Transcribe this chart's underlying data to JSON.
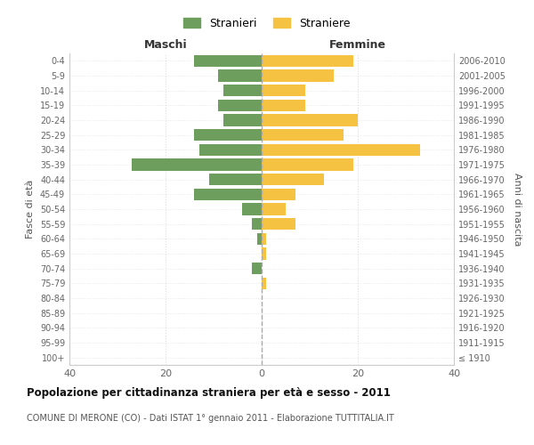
{
  "age_groups": [
    "100+",
    "95-99",
    "90-94",
    "85-89",
    "80-84",
    "75-79",
    "70-74",
    "65-69",
    "60-64",
    "55-59",
    "50-54",
    "45-49",
    "40-44",
    "35-39",
    "30-34",
    "25-29",
    "20-24",
    "15-19",
    "10-14",
    "5-9",
    "0-4"
  ],
  "birth_years": [
    "≤ 1910",
    "1911-1915",
    "1916-1920",
    "1921-1925",
    "1926-1930",
    "1931-1935",
    "1936-1940",
    "1941-1945",
    "1946-1950",
    "1951-1955",
    "1956-1960",
    "1961-1965",
    "1966-1970",
    "1971-1975",
    "1976-1980",
    "1981-1985",
    "1986-1990",
    "1991-1995",
    "1996-2000",
    "2001-2005",
    "2006-2010"
  ],
  "maschi": [
    0,
    0,
    0,
    0,
    0,
    0,
    2,
    0,
    1,
    2,
    4,
    14,
    11,
    27,
    13,
    14,
    8,
    9,
    8,
    9,
    14
  ],
  "femmine": [
    0,
    0,
    0,
    0,
    0,
    1,
    0,
    1,
    1,
    7,
    5,
    7,
    13,
    19,
    33,
    17,
    20,
    9,
    9,
    15,
    19
  ],
  "color_maschi": "#6d9e5e",
  "color_femmine": "#f5c242",
  "title": "Popolazione per cittadinanza straniera per età e sesso - 2011",
  "subtitle": "COMUNE DI MERONE (CO) - Dati ISTAT 1° gennaio 2011 - Elaborazione TUTTITALIA.IT",
  "xlabel_left": "Maschi",
  "xlabel_right": "Femmine",
  "ylabel_left": "Fasce di età",
  "ylabel_right": "Anni di nascita",
  "legend_maschi": "Stranieri",
  "legend_femmine": "Straniere",
  "xlim": 40,
  "background_color": "#ffffff",
  "grid_color": "#dddddd",
  "bar_height": 0.8
}
